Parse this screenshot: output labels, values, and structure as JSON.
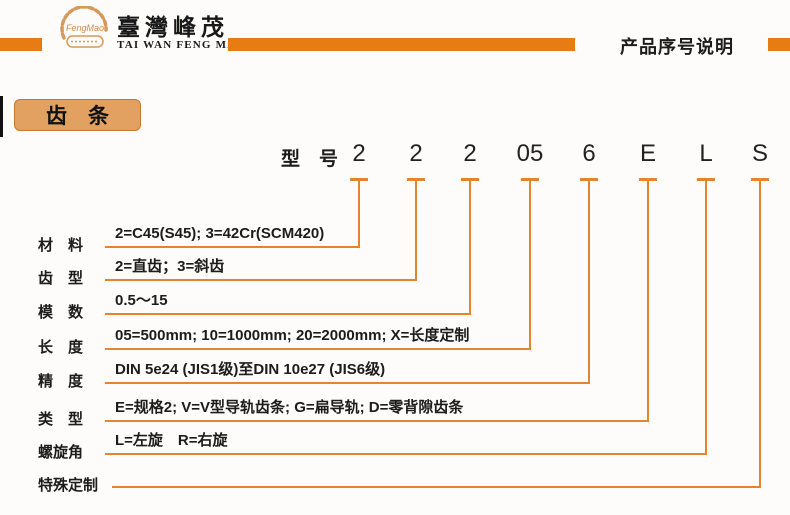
{
  "header": {
    "brand_cn": "臺灣峰茂",
    "brand_en": "TAI WAN FENG MAO",
    "logo_text": "FengMao",
    "page_title": "产品序号说明"
  },
  "section": {
    "badge": "齿　条"
  },
  "model": {
    "label": "型　号",
    "chars": [
      "2",
      "2",
      "2",
      "05",
      "6",
      "E",
      "L",
      "S"
    ]
  },
  "rows": [
    {
      "label": "材　料",
      "text": "2=C45(S45); 3=42Cr(SCM420)"
    },
    {
      "label": "齿　型",
      "text": "2=直齿；3=斜齿"
    },
    {
      "label": "模　数",
      "text": "0.5～15"
    },
    {
      "label": "长　度",
      "text": "05=500mm; 10=1000mm; 20=2000mm; X=长度定制"
    },
    {
      "label": "精　度",
      "text": "DIN 5e24 (JIS1级)至DIN 10e27 (JIS6级)"
    },
    {
      "label": "类　型",
      "text": "E=规格2; V=V型导轨齿条; G=扁导轨; D=零背隙齿条"
    },
    {
      "label": "螺旋角",
      "text": "L=左旋　R=右旋"
    },
    {
      "label": "特殊定制",
      "text": ""
    }
  ],
  "colors": {
    "bar": "#E87C12",
    "line": "#E28430",
    "badge_bg": "#E2A160",
    "badge_border": "#C07A33"
  }
}
